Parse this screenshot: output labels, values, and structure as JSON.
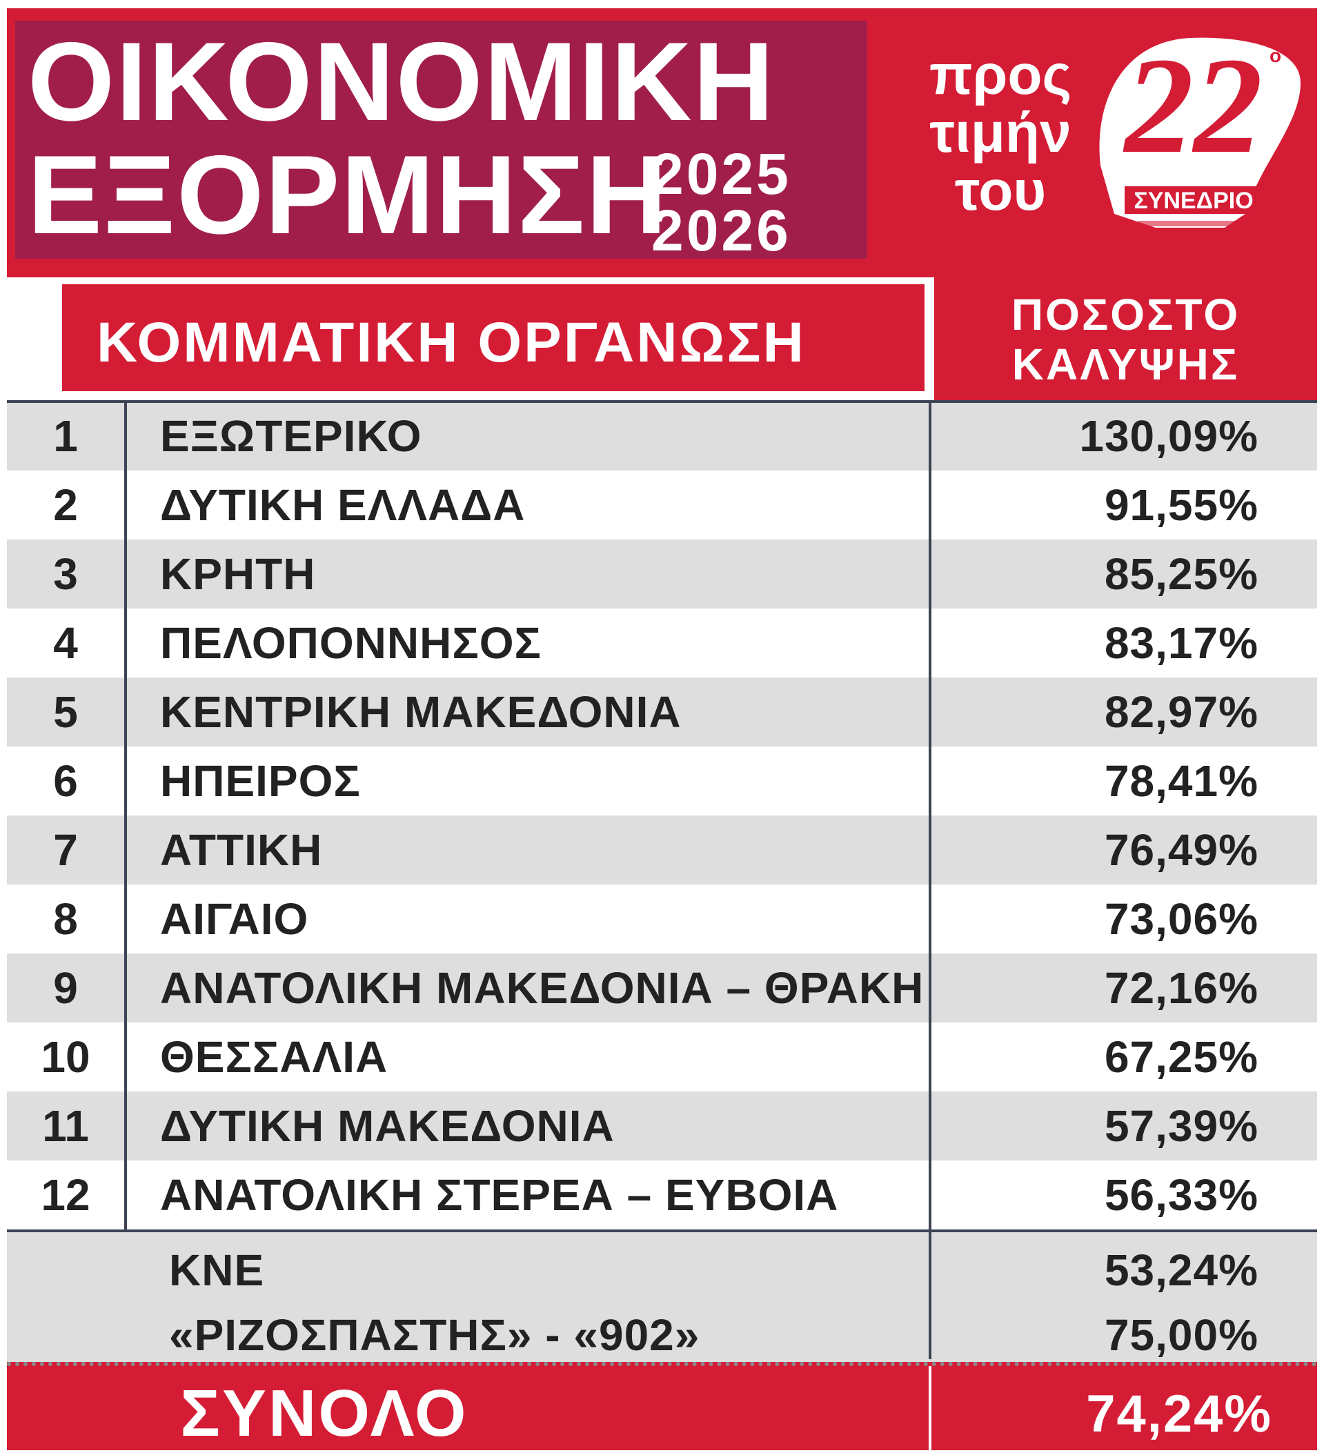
{
  "header": {
    "title_line1": "ΟΙΚΟΝΟΜΙΚΗ",
    "title_line2": "ΕΞΟΡΜΗΣΗ",
    "year_start": "2025",
    "year_end": "2026",
    "tribute_line1": "προς",
    "tribute_line2": "τιμήν",
    "tribute_line3": "του",
    "logo_number": "22",
    "logo_sup": "ο",
    "logo_text": "ΣΥΝΕΔΡΙΟ"
  },
  "columns": {
    "organization": "ΚΟΜΜΑΤΙΚΗ ΟΡΓΑΝΩΣΗ",
    "coverage_line1": "ΠΟΣΟΣΤΟ",
    "coverage_line2": "ΚΑΛΥΨΗΣ"
  },
  "rows": [
    {
      "rank": "1",
      "name": "ΕΞΩΤΕΡΙΚΟ",
      "value": "130,09%"
    },
    {
      "rank": "2",
      "name": "ΔΥΤΙΚΗ ΕΛΛΑΔΑ",
      "value": "91,55%"
    },
    {
      "rank": "3",
      "name": "ΚΡΗΤΗ",
      "value": "85,25%"
    },
    {
      "rank": "4",
      "name": "ΠΕΛΟΠΟΝΝΗΣΟΣ",
      "value": "83,17%"
    },
    {
      "rank": "5",
      "name": "ΚΕΝΤΡΙΚΗ ΜΑΚΕΔΟΝΙΑ",
      "value": "82,97%"
    },
    {
      "rank": "6",
      "name": "ΗΠΕΙΡΟΣ",
      "value": "78,41%"
    },
    {
      "rank": "7",
      "name": "ΑΤΤΙΚΗ",
      "value": "76,49%"
    },
    {
      "rank": "8",
      "name": "ΑΙΓΑΙΟ",
      "value": "73,06%"
    },
    {
      "rank": "9",
      "name": "ΑΝΑΤΟΛΙΚΗ ΜΑΚΕΔΟΝΙΑ – ΘΡΑΚΗ",
      "value": "72,16%"
    },
    {
      "rank": "10",
      "name": "ΘΕΣΣΑΛΙΑ",
      "value": "67,25%"
    },
    {
      "rank": "11",
      "name": "ΔΥΤΙΚΗ ΜΑΚΕΔΟΝΙΑ",
      "value": "57,39%"
    },
    {
      "rank": "12",
      "name": "ΑΝΑΤΟΛΙΚΗ ΣΤΕΡΕΑ – ΕΥΒΟΙΑ",
      "value": "56,33%"
    }
  ],
  "extras": [
    {
      "name": "ΚΝΕ",
      "value": "53,24%"
    },
    {
      "name": "«ΡΙΖΟΣΠΑΣΤΗΣ» - «902»",
      "value": "75,00%"
    }
  ],
  "total": {
    "label": "ΣΥΝΟΛΟ",
    "value": "74,24%"
  },
  "colors": {
    "red": "#d51c35",
    "maroon": "#a11e4b",
    "row_shade": "#dedede",
    "rule": "#3d4454"
  }
}
